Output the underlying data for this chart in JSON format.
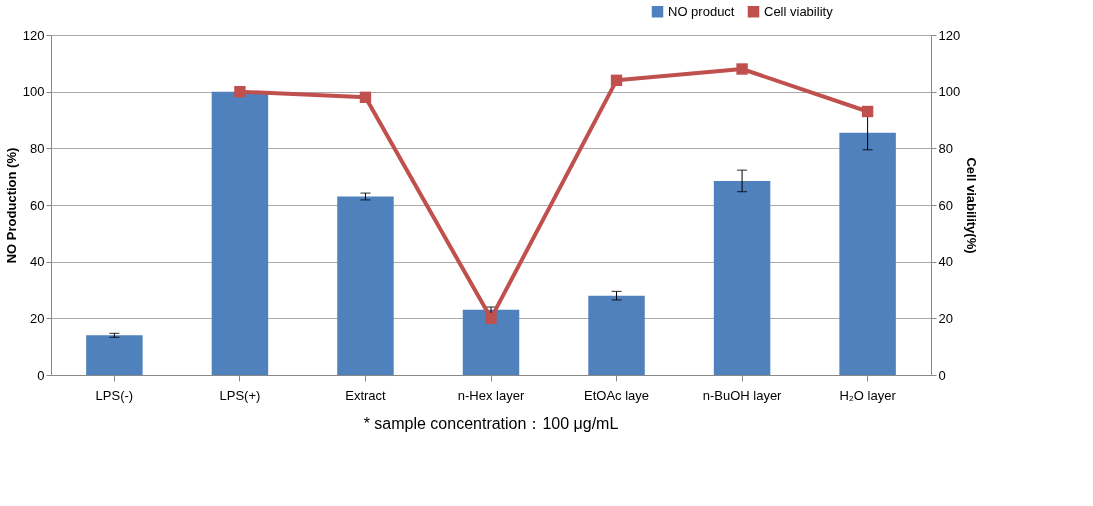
{
  "chart_data": {
    "type": "bar",
    "categories": [
      "LPS(-)",
      "LPS(+)",
      "Extract",
      "n-Hex layer",
      "EtOAc laye",
      "n-BuOH layer",
      "H₂O layer"
    ],
    "series": [
      {
        "name": "NO product",
        "color": "#4f81bd",
        "values": [
          14,
          100,
          63,
          23,
          28,
          68.5,
          85.5
        ],
        "errors": [
          0.7,
          null,
          1.2,
          1,
          1.5,
          3.8,
          6
        ]
      },
      {
        "name": "Cell viability",
        "type": "line",
        "axis": "y2",
        "color": "#c0504d",
        "marker": "square",
        "values": [
          null,
          100,
          98,
          20,
          104,
          108,
          93
        ]
      }
    ],
    "ylabel": "NO Production (%)",
    "y2label": "Cell viability(%)",
    "ylim": [
      0,
      120
    ],
    "yticks": [
      0,
      20,
      40,
      60,
      80,
      100,
      120
    ],
    "y2lim": [
      0,
      120
    ],
    "y2ticks": [
      0,
      20,
      40,
      60,
      80,
      100,
      120
    ],
    "grid": "y",
    "legend": "top right",
    "annotations": [
      "* sample concentration：100 μg/mL"
    ]
  }
}
